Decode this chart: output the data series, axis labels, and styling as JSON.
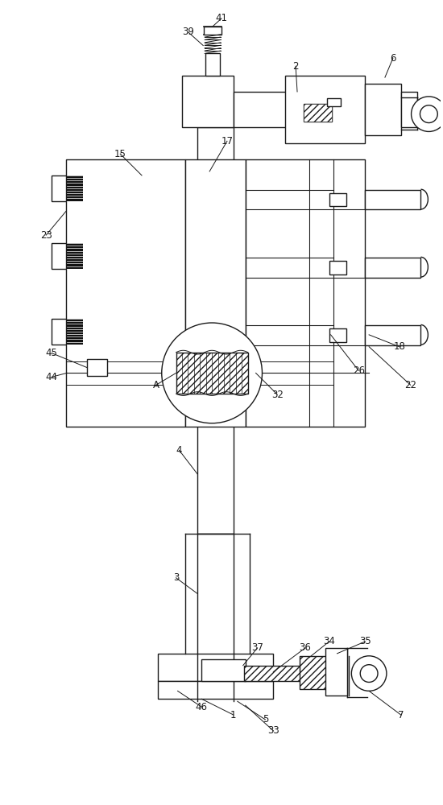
{
  "bg_color": "#ffffff",
  "line_color": "#1a1a1a",
  "lw": 1.0,
  "fig_w": 5.5,
  "fig_h": 10.0
}
